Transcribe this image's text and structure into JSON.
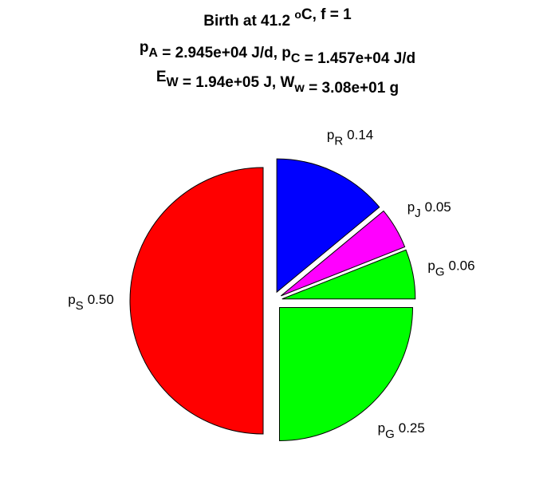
{
  "chart_data": {
    "type": "pie",
    "title": [
      [
        {
          "text": "Birth at 41.2 "
        },
        {
          "sup": "o"
        },
        {
          "text": "C, f = 1"
        }
      ],
      [
        {
          "text": "p"
        },
        {
          "sub": "A"
        },
        {
          "text": " = 2.945e+04 J/d, p"
        },
        {
          "sub": "C"
        },
        {
          "text": " = 1.457e+04 J/d"
        }
      ],
      [
        {
          "text": "E"
        },
        {
          "sub": "W"
        },
        {
          "text": " = 1.94e+05 J, W"
        },
        {
          "sub": "w"
        },
        {
          "text": " = 3.08e+01 g"
        }
      ]
    ],
    "labels": [
      {
        "base": "p",
        "sub": "R"
      },
      {
        "base": "p",
        "sub": "J"
      },
      {
        "base": "p",
        "sub": "G"
      },
      {
        "base": "p",
        "sub": "G"
      },
      {
        "base": "p",
        "sub": "S"
      }
    ],
    "values": [
      0.14,
      0.05,
      0.06,
      0.25,
      0.5
    ],
    "value_labels": [
      "0.14",
      "0.05",
      "0.06",
      "0.25",
      "0.50"
    ],
    "colors": [
      "#0000ff",
      "#ff00ff",
      "#00ff00",
      "#00ff00",
      "#ff0000"
    ],
    "exploded": true
  }
}
